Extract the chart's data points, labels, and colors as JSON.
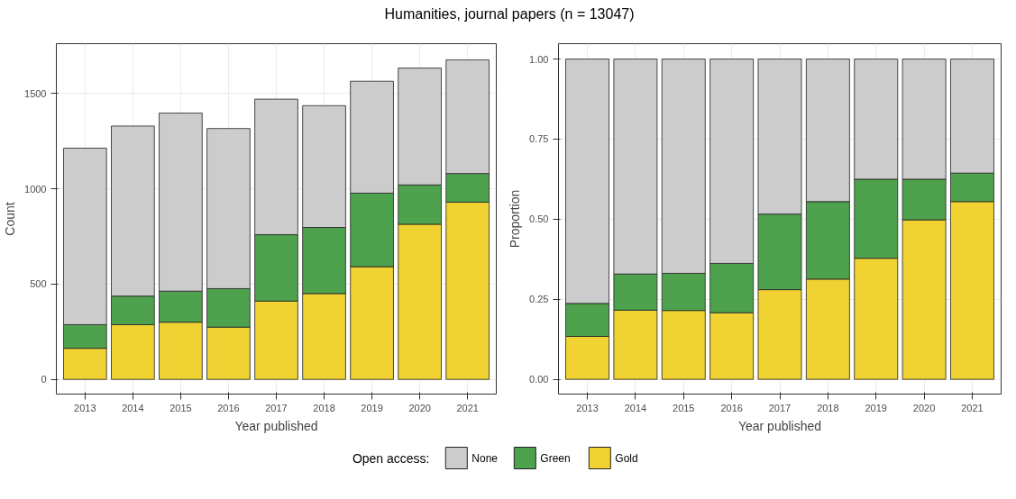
{
  "chart_data": [
    {
      "type": "bar",
      "title": "Humanities, journal papers (n = 13047)",
      "xlabel": "Year published",
      "ylabel": "Count",
      "stacked": true,
      "grid": true,
      "legend": "bottom",
      "legend_title": "Open access:",
      "categories": [
        "2013",
        "2014",
        "2015",
        "2016",
        "2017",
        "2018",
        "2019",
        "2020",
        "2021"
      ],
      "ylim": [
        -77,
        1761
      ],
      "yticks": [
        0,
        500,
        1000,
        1500
      ],
      "series": [
        {
          "name": "Gold",
          "color": "#f0d232",
          "values": [
            163,
            287,
            300,
            274,
            411,
            450,
            591,
            814,
            930
          ]
        },
        {
          "name": "Green",
          "color": "#4ea24e",
          "values": [
            124,
            150,
            163,
            202,
            348,
            347,
            386,
            206,
            150
          ]
        },
        {
          "name": "None",
          "color": "#cccccc",
          "values": [
            926,
            892,
            934,
            840,
            711,
            639,
            587,
            613,
            596
          ]
        }
      ]
    },
    {
      "type": "bar",
      "xlabel": "Year published",
      "ylabel": "Proportion",
      "stacked": true,
      "grid": true,
      "categories": [
        "2013",
        "2014",
        "2015",
        "2016",
        "2017",
        "2018",
        "2019",
        "2020",
        "2021"
      ],
      "ylim": [
        -0.046,
        1.048
      ],
      "yticks": [
        {
          "value": 0,
          "label": "0.00"
        },
        {
          "value": 0.25,
          "label": "0.25"
        },
        {
          "value": 0.5,
          "label": "0.50"
        },
        {
          "value": 0.75,
          "label": "0.75"
        },
        {
          "value": 1,
          "label": "1.00"
        }
      ],
      "series": [
        {
          "color": "#f0d232",
          "values": [
            0.134,
            0.216,
            0.215,
            0.208,
            0.28,
            0.313,
            0.378,
            0.498,
            0.555
          ]
        },
        {
          "color": "#4ea24e",
          "values": [
            0.103,
            0.113,
            0.116,
            0.154,
            0.236,
            0.242,
            0.247,
            0.127,
            0.089
          ]
        },
        {
          "color": "#cccccc",
          "values": [
            0.763,
            0.671,
            0.669,
            0.638,
            0.484,
            0.445,
            0.375,
            0.375,
            0.356
          ]
        }
      ]
    }
  ]
}
